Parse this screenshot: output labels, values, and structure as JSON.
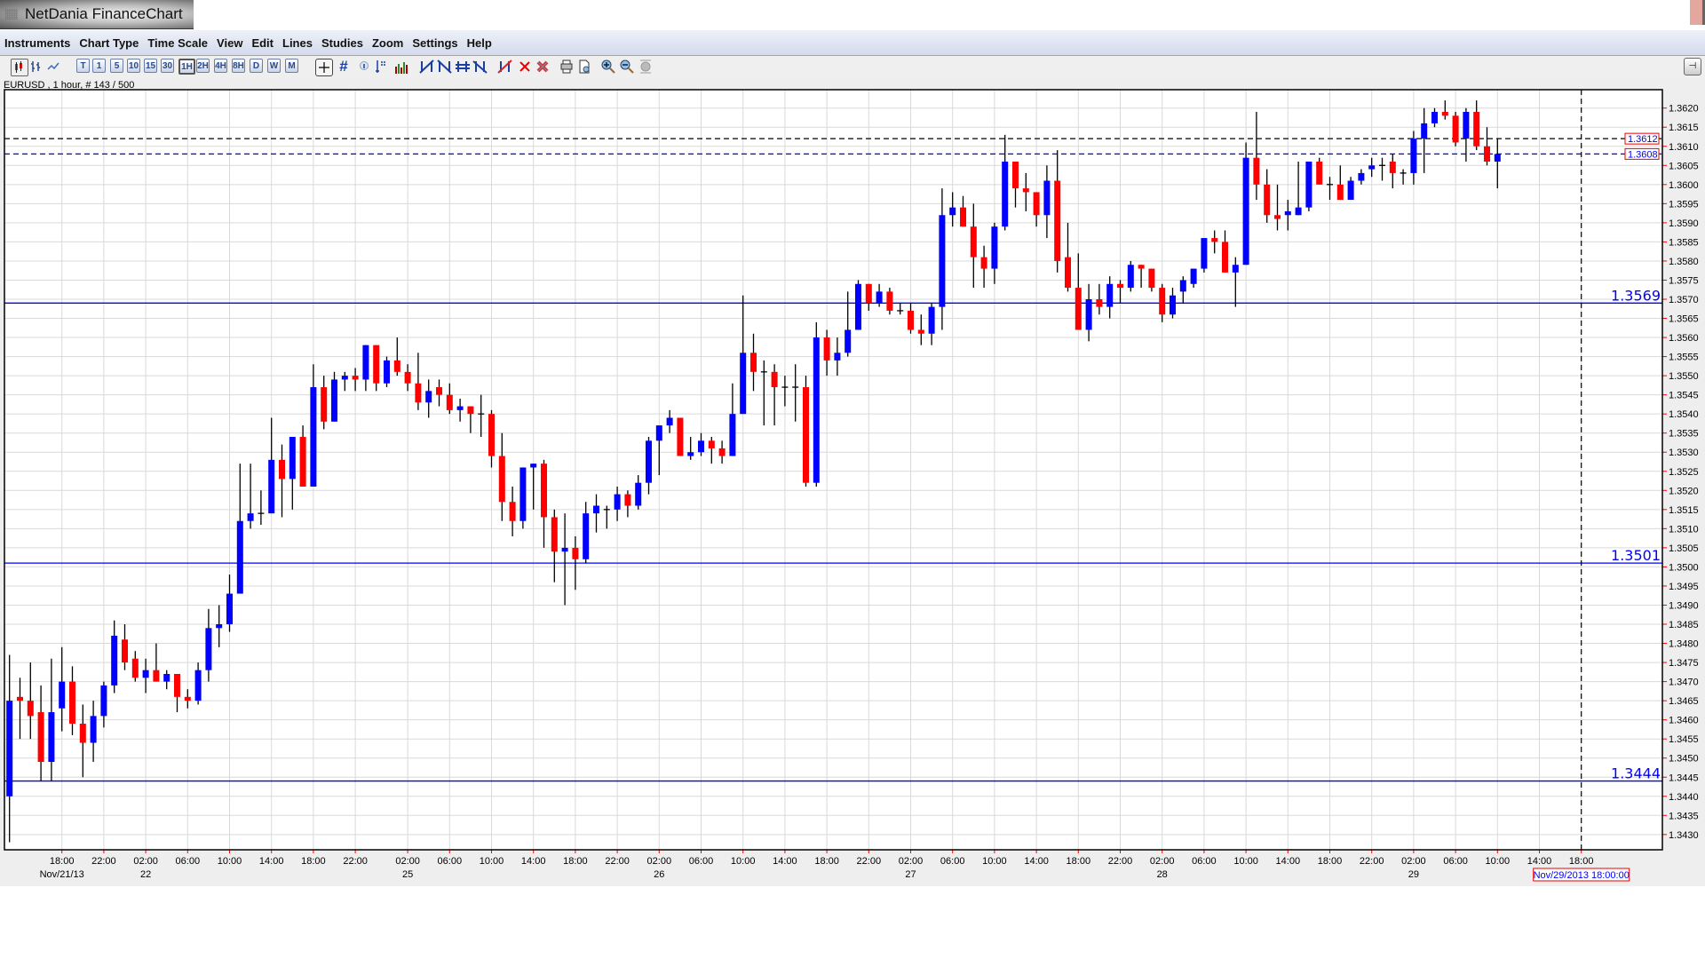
{
  "window": {
    "title": "NetDania FinanceChart"
  },
  "menu": [
    "Instruments",
    "Chart Type",
    "Time Scale",
    "View",
    "Edit",
    "Lines",
    "Studies",
    "Zoom",
    "Settings",
    "Help"
  ],
  "toolbar": {
    "chart_type_icons": [
      "candlestick-chart-icon",
      "bar-chart-icon",
      "line-chart-icon"
    ],
    "timeframes": [
      {
        "label": "T",
        "active": false
      },
      {
        "label": "1",
        "active": false
      },
      {
        "label": "5",
        "active": false
      },
      {
        "label": "10",
        "active": false
      },
      {
        "label": "15",
        "active": false
      },
      {
        "label": "30",
        "active": false
      },
      {
        "label": "1H",
        "active": true
      },
      {
        "label": "2H",
        "active": false
      },
      {
        "label": "4H",
        "active": false
      },
      {
        "label": "8H",
        "active": false
      },
      {
        "label": "D",
        "active": false
      },
      {
        "label": "W",
        "active": false
      },
      {
        "label": "M",
        "active": false
      }
    ],
    "grid_symbol": "#"
  },
  "status": "EURUSD , 1 hour, # 143 / 500",
  "colors": {
    "up": "#0000ff",
    "down": "#ff0000",
    "wick": "#000000",
    "grid": "#d9d9d9",
    "level": "#0000ff",
    "tick": "#ff0000"
  },
  "chart_data": {
    "type": "candlestick",
    "symbol": "EURUSD",
    "interval": "1 hour",
    "ylim": [
      1.3425,
      1.3625
    ],
    "y_ticks": [
      "1.3620",
      "1.3615",
      "1.3610",
      "1.3605",
      "1.3600",
      "1.3595",
      "1.3590",
      "1.3585",
      "1.3580",
      "1.3575",
      "1.3570",
      "1.3565",
      "1.3560",
      "1.3555",
      "1.3550",
      "1.3545",
      "1.3540",
      "1.3535",
      "1.3530",
      "1.3525",
      "1.3520",
      "1.3515",
      "1.3510",
      "1.3505",
      "1.3500",
      "1.3495",
      "1.3490",
      "1.3485",
      "1.3480",
      "1.3475",
      "1.3470",
      "1.3465",
      "1.3460",
      "1.3455",
      "1.3450",
      "1.3445",
      "1.3440",
      "1.3435",
      "1.3430"
    ],
    "x_labels": [
      {
        "bar": 5,
        "time": "18:00",
        "date": "Nov/21/13"
      },
      {
        "bar": 9,
        "time": "22:00"
      },
      {
        "bar": 13,
        "time": "02:00",
        "date": "22"
      },
      {
        "bar": 17,
        "time": "06:00"
      },
      {
        "bar": 21,
        "time": "10:00"
      },
      {
        "bar": 25,
        "time": "14:00"
      },
      {
        "bar": 29,
        "time": "18:00"
      },
      {
        "bar": 33,
        "time": "22:00"
      },
      {
        "bar": 38,
        "time": "02:00",
        "date": "25"
      },
      {
        "bar": 42,
        "time": "06:00"
      },
      {
        "bar": 46,
        "time": "10:00"
      },
      {
        "bar": 50,
        "time": "14:00"
      },
      {
        "bar": 54,
        "time": "18:00"
      },
      {
        "bar": 58,
        "time": "22:00"
      },
      {
        "bar": 62,
        "time": "02:00",
        "date": "26"
      },
      {
        "bar": 66,
        "time": "06:00"
      },
      {
        "bar": 70,
        "time": "10:00"
      },
      {
        "bar": 74,
        "time": "14:00"
      },
      {
        "bar": 78,
        "time": "18:00"
      },
      {
        "bar": 82,
        "time": "22:00"
      },
      {
        "bar": 86,
        "time": "02:00",
        "date": "27"
      },
      {
        "bar": 90,
        "time": "06:00"
      },
      {
        "bar": 94,
        "time": "10:00"
      },
      {
        "bar": 98,
        "time": "14:00"
      },
      {
        "bar": 102,
        "time": "18:00"
      },
      {
        "bar": 106,
        "time": "22:00"
      },
      {
        "bar": 110,
        "time": "02:00",
        "date": "28"
      },
      {
        "bar": 114,
        "time": "06:00"
      },
      {
        "bar": 118,
        "time": "10:00"
      },
      {
        "bar": 122,
        "time": "14:00"
      },
      {
        "bar": 126,
        "time": "18:00"
      },
      {
        "bar": 130,
        "time": "22:00"
      },
      {
        "bar": 134,
        "time": "02:00",
        "date": "29"
      },
      {
        "bar": 138,
        "time": "06:00"
      },
      {
        "bar": 142,
        "time": "10:00"
      },
      {
        "bar": 146,
        "time": "14:00"
      },
      {
        "bar": 150,
        "time": "18:00"
      }
    ],
    "levels": [
      {
        "price": 1.3569,
        "label": "1.3569"
      },
      {
        "price": 1.3501,
        "label": "1.3501"
      },
      {
        "price": 1.3444,
        "label": "1.3444"
      }
    ],
    "price_markers": [
      {
        "price": 1.3612,
        "label": "1.3612",
        "line_color": "#000000"
      },
      {
        "price": 1.3608,
        "label": "1.3608",
        "line_color": "#0000ff"
      }
    ],
    "cursor": {
      "bar": 150,
      "label": "Nov/29/2013 18:00:00"
    },
    "ohlc_fields": [
      "open",
      "high",
      "low",
      "close"
    ],
    "candles": [
      [
        1.344,
        1.3477,
        1.3428,
        1.3465
      ],
      [
        1.3466,
        1.3471,
        1.3455,
        1.3465
      ],
      [
        1.3465,
        1.3475,
        1.3455,
        1.3461
      ],
      [
        1.3462,
        1.3469,
        1.3444,
        1.3449
      ],
      [
        1.3449,
        1.3476,
        1.3444,
        1.3462
      ],
      [
        1.3463,
        1.3479,
        1.3457,
        1.347
      ],
      [
        1.347,
        1.3474,
        1.3456,
        1.3459
      ],
      [
        1.3459,
        1.3464,
        1.3445,
        1.3454
      ],
      [
        1.3454,
        1.3465,
        1.3449,
        1.3461
      ],
      [
        1.3461,
        1.347,
        1.3458,
        1.3469
      ],
      [
        1.3469,
        1.3486,
        1.3467,
        1.3482
      ],
      [
        1.3481,
        1.3485,
        1.3473,
        1.3475
      ],
      [
        1.3476,
        1.3478,
        1.347,
        1.3471
      ],
      [
        1.3471,
        1.3476,
        1.3467,
        1.3473
      ],
      [
        1.3473,
        1.348,
        1.347,
        1.347
      ],
      [
        1.347,
        1.3473,
        1.3468,
        1.3472
      ],
      [
        1.3472,
        1.3472,
        1.3462,
        1.3466
      ],
      [
        1.3466,
        1.3468,
        1.3463,
        1.3465
      ],
      [
        1.3465,
        1.3475,
        1.3464,
        1.3473
      ],
      [
        1.3473,
        1.3489,
        1.347,
        1.3484
      ],
      [
        1.3484,
        1.349,
        1.3479,
        1.3485
      ],
      [
        1.3485,
        1.3498,
        1.3483,
        1.3493
      ],
      [
        1.3493,
        1.3527,
        1.3493,
        1.3512
      ],
      [
        1.3512,
        1.3527,
        1.351,
        1.3514
      ],
      [
        1.3514,
        1.352,
        1.3511,
        1.3514
      ],
      [
        1.3514,
        1.3539,
        1.3514,
        1.3528
      ],
      [
        1.3528,
        1.3532,
        1.3513,
        1.3523
      ],
      [
        1.3523,
        1.3534,
        1.3515,
        1.3534
      ],
      [
        1.3534,
        1.3537,
        1.3521,
        1.3521
      ],
      [
        1.3521,
        1.3553,
        1.3521,
        1.3547
      ],
      [
        1.3547,
        1.355,
        1.3536,
        1.3538
      ],
      [
        1.3538,
        1.3551,
        1.3538,
        1.3549
      ],
      [
        1.3549,
        1.3551,
        1.3546,
        1.355
      ],
      [
        1.355,
        1.3552,
        1.3546,
        1.3549
      ],
      [
        1.3549,
        1.3558,
        1.3546,
        1.3558
      ],
      [
        1.3558,
        1.3558,
        1.3546,
        1.3548
      ],
      [
        1.3548,
        1.3555,
        1.3547,
        1.3554
      ],
      [
        1.3554,
        1.356,
        1.355,
        1.3551
      ],
      [
        1.3551,
        1.3553,
        1.3546,
        1.3548
      ],
      [
        1.3548,
        1.3556,
        1.3541,
        1.3543
      ],
      [
        1.3543,
        1.3549,
        1.3539,
        1.3546
      ],
      [
        1.3547,
        1.3549,
        1.3542,
        1.3545
      ],
      [
        1.3545,
        1.3548,
        1.354,
        1.3541
      ],
      [
        1.3541,
        1.3544,
        1.3538,
        1.3542
      ],
      [
        1.3542,
        1.3542,
        1.3535,
        1.354
      ],
      [
        1.354,
        1.3545,
        1.3534,
        1.354
      ],
      [
        1.354,
        1.3541,
        1.3526,
        1.3529
      ],
      [
        1.3529,
        1.3535,
        1.3512,
        1.3517
      ],
      [
        1.3517,
        1.3521,
        1.3508,
        1.3512
      ],
      [
        1.3512,
        1.3526,
        1.351,
        1.3526
      ],
      [
        1.3526,
        1.3527,
        1.3515,
        1.3527
      ],
      [
        1.3527,
        1.3528,
        1.3505,
        1.3513
      ],
      [
        1.3513,
        1.3515,
        1.3496,
        1.3504
      ],
      [
        1.3504,
        1.3514,
        1.349,
        1.3505
      ],
      [
        1.3505,
        1.3508,
        1.3494,
        1.3502
      ],
      [
        1.3502,
        1.3517,
        1.3501,
        1.3514
      ],
      [
        1.3514,
        1.3519,
        1.3509,
        1.3516
      ],
      [
        1.3515,
        1.3516,
        1.351,
        1.3515
      ],
      [
        1.3515,
        1.3521,
        1.3512,
        1.3519
      ],
      [
        1.3519,
        1.352,
        1.3513,
        1.3516
      ],
      [
        1.3516,
        1.3524,
        1.3515,
        1.3522
      ],
      [
        1.3522,
        1.3534,
        1.3519,
        1.3533
      ],
      [
        1.3533,
        1.3537,
        1.3524,
        1.3537
      ],
      [
        1.3537,
        1.3541,
        1.3535,
        1.3539
      ],
      [
        1.3539,
        1.3539,
        1.3529,
        1.3529
      ],
      [
        1.3529,
        1.3534,
        1.3528,
        1.353
      ],
      [
        1.353,
        1.3535,
        1.3529,
        1.3533
      ],
      [
        1.3533,
        1.3534,
        1.3527,
        1.3531
      ],
      [
        1.3531,
        1.3533,
        1.3527,
        1.3529
      ],
      [
        1.3529,
        1.3548,
        1.3529,
        1.354
      ],
      [
        1.354,
        1.3571,
        1.354,
        1.3556
      ],
      [
        1.3556,
        1.3561,
        1.3546,
        1.3551
      ],
      [
        1.3551,
        1.3554,
        1.3537,
        1.3551
      ],
      [
        1.3551,
        1.3553,
        1.3537,
        1.3547
      ],
      [
        1.3547,
        1.355,
        1.3542,
        1.3547
      ],
      [
        1.3547,
        1.3553,
        1.3538,
        1.3547
      ],
      [
        1.3547,
        1.355,
        1.3521,
        1.3522
      ],
      [
        1.3522,
        1.3564,
        1.3521,
        1.356
      ],
      [
        1.356,
        1.3562,
        1.355,
        1.3554
      ],
      [
        1.3554,
        1.356,
        1.355,
        1.3556
      ],
      [
        1.3556,
        1.3572,
        1.3555,
        1.3562
      ],
      [
        1.3562,
        1.3575,
        1.3562,
        1.3574
      ],
      [
        1.3574,
        1.3574,
        1.3567,
        1.3569
      ],
      [
        1.3569,
        1.3574,
        1.3568,
        1.3572
      ],
      [
        1.3572,
        1.3573,
        1.3566,
        1.3567
      ],
      [
        1.3567,
        1.3569,
        1.3566,
        1.3567
      ],
      [
        1.3567,
        1.3569,
        1.3561,
        1.3562
      ],
      [
        1.3562,
        1.3566,
        1.3558,
        1.3561
      ],
      [
        1.3561,
        1.3569,
        1.3558,
        1.3568
      ],
      [
        1.3568,
        1.3599,
        1.3562,
        1.3592
      ],
      [
        1.3592,
        1.3598,
        1.3589,
        1.3594
      ],
      [
        1.3594,
        1.3597,
        1.3589,
        1.3589
      ],
      [
        1.3589,
        1.3595,
        1.3573,
        1.3581
      ],
      [
        1.3581,
        1.3584,
        1.3573,
        1.3578
      ],
      [
        1.3578,
        1.359,
        1.3574,
        1.3589
      ],
      [
        1.3589,
        1.3613,
        1.3588,
        1.3606
      ],
      [
        1.3606,
        1.3606,
        1.3594,
        1.3599
      ],
      [
        1.3599,
        1.3603,
        1.3593,
        1.3598
      ],
      [
        1.3598,
        1.3598,
        1.3589,
        1.3592
      ],
      [
        1.3592,
        1.3605,
        1.3586,
        1.3601
      ],
      [
        1.3601,
        1.3609,
        1.3577,
        1.358
      ],
      [
        1.3581,
        1.359,
        1.3572,
        1.3573
      ],
      [
        1.3573,
        1.3582,
        1.3562,
        1.3562
      ],
      [
        1.3562,
        1.3574,
        1.3559,
        1.357
      ],
      [
        1.357,
        1.3574,
        1.3566,
        1.3568
      ],
      [
        1.3568,
        1.3576,
        1.3565,
        1.3574
      ],
      [
        1.3574,
        1.3575,
        1.3569,
        1.3573
      ],
      [
        1.3573,
        1.358,
        1.3572,
        1.3579
      ],
      [
        1.3579,
        1.3579,
        1.3573,
        1.3578
      ],
      [
        1.3578,
        1.3578,
        1.3572,
        1.3573
      ],
      [
        1.3573,
        1.3574,
        1.3564,
        1.3566
      ],
      [
        1.3566,
        1.3573,
        1.3565,
        1.3571
      ],
      [
        1.3572,
        1.3576,
        1.3569,
        1.3575
      ],
      [
        1.3574,
        1.3578,
        1.3573,
        1.3578
      ],
      [
        1.3578,
        1.3586,
        1.3577,
        1.3586
      ],
      [
        1.3586,
        1.3588,
        1.3582,
        1.3585
      ],
      [
        1.3585,
        1.3588,
        1.3577,
        1.3577
      ],
      [
        1.3577,
        1.3581,
        1.3568,
        1.3579
      ],
      [
        1.3579,
        1.3611,
        1.3579,
        1.3607
      ],
      [
        1.3607,
        1.3619,
        1.3596,
        1.36
      ],
      [
        1.36,
        1.3604,
        1.359,
        1.3592
      ],
      [
        1.3592,
        1.36,
        1.3588,
        1.3591
      ],
      [
        1.3592,
        1.3596,
        1.3588,
        1.3593
      ],
      [
        1.3592,
        1.3606,
        1.3592,
        1.3594
      ],
      [
        1.3594,
        1.3606,
        1.3593,
        1.3606
      ],
      [
        1.3606,
        1.3607,
        1.36,
        1.36
      ],
      [
        1.36,
        1.3602,
        1.3596,
        1.36
      ],
      [
        1.36,
        1.3605,
        1.3596,
        1.3596
      ],
      [
        1.3596,
        1.3602,
        1.3596,
        1.3601
      ],
      [
        1.3601,
        1.3604,
        1.36,
        1.3603
      ],
      [
        1.3604,
        1.3607,
        1.3602,
        1.3605
      ],
      [
        1.3605,
        1.3607,
        1.3601,
        1.3605
      ],
      [
        1.3606,
        1.3608,
        1.3599,
        1.3603
      ],
      [
        1.3603,
        1.3604,
        1.36,
        1.3603
      ],
      [
        1.3603,
        1.3614,
        1.36,
        1.3612
      ],
      [
        1.3612,
        1.362,
        1.3603,
        1.3616
      ],
      [
        1.3616,
        1.362,
        1.3615,
        1.3619
      ],
      [
        1.3619,
        1.3622,
        1.3617,
        1.3618
      ],
      [
        1.3618,
        1.3619,
        1.361,
        1.3611
      ],
      [
        1.3612,
        1.362,
        1.3606,
        1.3619
      ],
      [
        1.3619,
        1.3622,
        1.3609,
        1.361
      ],
      [
        1.361,
        1.3615,
        1.3605,
        1.3606
      ],
      [
        1.3606,
        1.3612,
        1.3599,
        1.3608
      ]
    ]
  }
}
